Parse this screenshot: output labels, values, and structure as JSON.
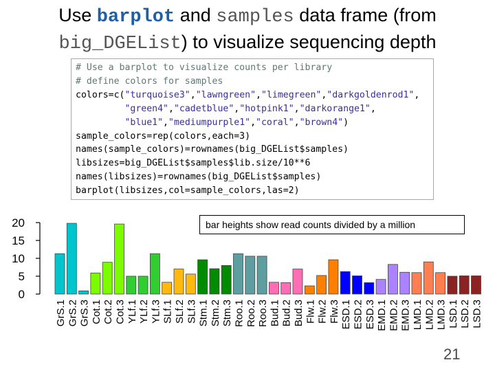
{
  "slide": {
    "title_parts": [
      "Use ",
      "barplot",
      " and ",
      "samples",
      " data frame (from ",
      "big_DGEList",
      ") to visualize sequencing depth"
    ],
    "callout": "bar heights show read counts divided by a million",
    "page_number": "21"
  },
  "code_lines": [
    [
      {
        "t": "# Use a barplot to visualize counts per library",
        "c": "cm"
      }
    ],
    [
      {
        "t": "# define colors for samples",
        "c": "cm"
      }
    ],
    [
      {
        "t": "colors=c(",
        "c": "fn"
      },
      {
        "t": "\"turquoise3\"",
        "c": "st"
      },
      {
        "t": ",",
        "c": "fn"
      },
      {
        "t": "\"lawngreen\"",
        "c": "st"
      },
      {
        "t": ",",
        "c": "fn"
      },
      {
        "t": "\"limegreen\"",
        "c": "st"
      },
      {
        "t": ",",
        "c": "fn"
      },
      {
        "t": "\"darkgoldenrod1\"",
        "c": "st"
      },
      {
        "t": ",",
        "c": "fn"
      }
    ],
    [
      {
        "t": "         ",
        "c": "fn"
      },
      {
        "t": "\"green4\"",
        "c": "st"
      },
      {
        "t": ",",
        "c": "fn"
      },
      {
        "t": "\"cadetblue\"",
        "c": "st"
      },
      {
        "t": ",",
        "c": "fn"
      },
      {
        "t": "\"hotpink1\"",
        "c": "st"
      },
      {
        "t": ",",
        "c": "fn"
      },
      {
        "t": "\"darkorange1\"",
        "c": "st"
      },
      {
        "t": ",",
        "c": "fn"
      }
    ],
    [
      {
        "t": "         ",
        "c": "fn"
      },
      {
        "t": "\"blue1\"",
        "c": "st"
      },
      {
        "t": ",",
        "c": "fn"
      },
      {
        "t": "\"mediumpurple1\"",
        "c": "st"
      },
      {
        "t": ",",
        "c": "fn"
      },
      {
        "t": "\"coral\"",
        "c": "st"
      },
      {
        "t": ",",
        "c": "fn"
      },
      {
        "t": "\"brown4\"",
        "c": "st"
      },
      {
        "t": ")",
        "c": "fn"
      }
    ],
    [
      {
        "t": "sample_colors=rep(colors,each=3)",
        "c": "fn"
      }
    ],
    [
      {
        "t": "names(sample_colors)=rownames(big_DGEList$samples)",
        "c": "fn"
      }
    ],
    [
      {
        "t": "libsizes=big_DGEList$samples$lib.size/10**6",
        "c": "fn"
      }
    ],
    [
      {
        "t": "names(libsizes)=rownames(big_DGEList$samples)",
        "c": "fn"
      }
    ],
    [
      {
        "t": "barplot(libsizes,col=sample_colors,las=2)",
        "c": "fn"
      }
    ]
  ],
  "chart_data": {
    "type": "bar",
    "ylim": [
      0,
      22
    ],
    "yticks": [
      0,
      5,
      10,
      15,
      20
    ],
    "categories": [
      "GrS.1",
      "GrS.2",
      "GrS.3",
      "Cot.1",
      "Cot.2",
      "Cot.3",
      "YLf.1",
      "YLf.2",
      "YLf.3",
      "SLf.1",
      "SLf.2",
      "SLf.3",
      "Stm.1",
      "Stm.2",
      "Stm.3",
      "Roo.1",
      "Roo.2",
      "Roo.3",
      "Bud.1",
      "Bud.2",
      "Bud.3",
      "Flw.1",
      "Flw.2",
      "Flw.3",
      "ESD.1",
      "ESD.2",
      "ESD.3",
      "EMD.1",
      "EMD.2",
      "EMD.3",
      "LMD.1",
      "LMD.2",
      "LMD.3",
      "LSD.1",
      "LSD.2",
      "LSD.3"
    ],
    "values": [
      11.3,
      19.8,
      0.9,
      5.9,
      8.9,
      19.6,
      5.0,
      5.0,
      11.3,
      3.3,
      7.0,
      5.6,
      9.6,
      7.1,
      8.0,
      11.3,
      10.6,
      10.6,
      3.3,
      3.2,
      7.0,
      2.3,
      5.2,
      9.6,
      6.3,
      5.1,
      3.2,
      4.1,
      8.3,
      6.1,
      6.0,
      9.0,
      6.0,
      5.0,
      5.1,
      5.1
    ],
    "colors": [
      "#00C5CD",
      "#7CFC00",
      "#32CD32",
      "#FFB90F",
      "#008B00",
      "#5F9EA0",
      "#FF6EB4",
      "#FF7F00",
      "#0000FF",
      "#AB82FF",
      "#FF7F50",
      "#8B2323"
    ],
    "color_names": [
      "turquoise3",
      "lawngreen",
      "limegreen",
      "darkgoldenrod1",
      "green4",
      "cadetblue",
      "hotpink1",
      "darkorange1",
      "blue1",
      "mediumpurple1",
      "coral",
      "brown4"
    ],
    "las": 2
  }
}
